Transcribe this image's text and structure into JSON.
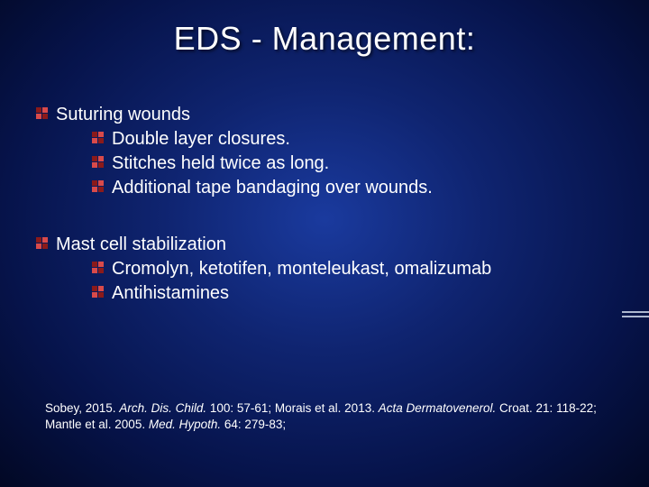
{
  "colors": {
    "background_gradient_center": "#1a3a9e",
    "background_gradient_mid": "#0f2470",
    "background_gradient_outer": "#020824",
    "text": "#ffffff",
    "bullet_dark": "#8b1a1a",
    "bullet_light": "#d94a4a",
    "decoration_line": "#aeb8d0"
  },
  "typography": {
    "title_fontsize": 36,
    "body_fontsize": 20,
    "citation_fontsize": 13.5,
    "font_family": "Arial"
  },
  "title": "EDS - Management:",
  "sections": [
    {
      "heading": "Suturing wounds",
      "items": [
        "Double layer closures.",
        "Stitches held twice as long.",
        "Additional tape bandaging over wounds."
      ]
    },
    {
      "heading": "Mast cell stabilization",
      "items": [
        "Cromolyn, ketotifen, monteleukast, omalizumab",
        "Antihistamines"
      ]
    }
  ],
  "citations": {
    "parts": [
      {
        "text": "Sobey, 2015. ",
        "italic": false
      },
      {
        "text": "Arch. Dis. Child.",
        "italic": true
      },
      {
        "text": " 100: 57-61; Morais et al. 2013. ",
        "italic": false
      },
      {
        "text": "Acta Dermatovenerol.",
        "italic": true
      },
      {
        "text": " Croat. 21: 118-22; Mantle et al. 2005. ",
        "italic": false
      },
      {
        "text": "Med. Hypoth.",
        "italic": true
      },
      {
        "text": " 64: 279-83;",
        "italic": false
      }
    ]
  }
}
